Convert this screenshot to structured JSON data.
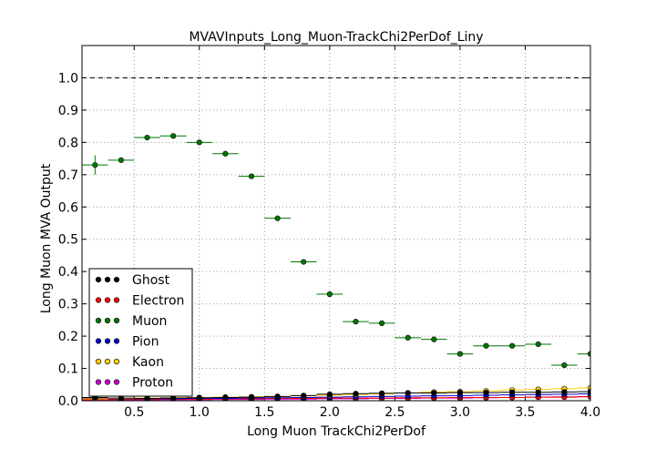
{
  "chart_data": {
    "type": "scatter",
    "title": "MVAVInputs_Long_Muon-TrackChi2PerDof_Liny",
    "xlabel": "Long Muon TrackChi2PerDof",
    "ylabel": "Long Muon MVA Output",
    "xlim": [
      0.1,
      4.0
    ],
    "ylim": [
      0.0,
      1.1
    ],
    "grid": true,
    "legend_position": "lower-left",
    "reference_line": 1.0,
    "xticks": [
      "0.5",
      "1.0",
      "1.5",
      "2.0",
      "2.5",
      "3.0",
      "3.5",
      "4.0"
    ],
    "yticks": [
      "0.0",
      "0.1",
      "0.2",
      "0.3",
      "0.4",
      "0.5",
      "0.6",
      "0.7",
      "0.8",
      "0.9",
      "1.0"
    ],
    "x": [
      0.2,
      0.4,
      0.6,
      0.8,
      1.0,
      1.2,
      1.4,
      1.6,
      1.8,
      2.0,
      2.2,
      2.4,
      2.6,
      2.8,
      3.0,
      3.2,
      3.4,
      3.6,
      3.8,
      4.0
    ],
    "xerr": 0.1,
    "series": [
      {
        "name": "Ghost",
        "color": "#000000",
        "values": [
          0.01,
          0.008,
          0.007,
          0.008,
          0.009,
          0.01,
          0.011,
          0.013,
          0.016,
          0.02,
          0.022,
          0.023,
          0.024,
          0.024,
          0.025,
          0.025,
          0.026,
          0.026,
          0.027,
          0.028
        ]
      },
      {
        "name": "Electron",
        "color": "#ff0000",
        "values": [
          0.003,
          0.004,
          0.004,
          0.005,
          0.005,
          0.006,
          0.006,
          0.007,
          0.007,
          0.008,
          0.008,
          0.008,
          0.009,
          0.009,
          0.01,
          0.01,
          0.01,
          0.011,
          0.011,
          0.012
        ]
      },
      {
        "name": "Muon",
        "color": "#007700",
        "values": [
          0.73,
          0.745,
          0.815,
          0.82,
          0.8,
          0.765,
          0.695,
          0.565,
          0.43,
          0.33,
          0.245,
          0.24,
          0.195,
          0.19,
          0.145,
          0.17,
          0.17,
          0.175,
          0.11,
          0.145
        ]
      },
      {
        "name": "Pion",
        "color": "#0000cc",
        "values": [
          0.008,
          0.006,
          0.006,
          0.006,
          0.007,
          0.007,
          0.008,
          0.009,
          0.01,
          0.011,
          0.012,
          0.013,
          0.014,
          0.015,
          0.016,
          0.017,
          0.018,
          0.019,
          0.02,
          0.021
        ]
      },
      {
        "name": "Kaon",
        "color": "#ffcc00",
        "values": [
          0.006,
          0.007,
          0.008,
          0.009,
          0.01,
          0.011,
          0.012,
          0.013,
          0.015,
          0.017,
          0.019,
          0.021,
          0.024,
          0.027,
          0.028,
          0.03,
          0.033,
          0.035,
          0.037,
          0.04
        ]
      },
      {
        "name": "Proton",
        "color": "#cc00cc",
        "values": [
          0.001,
          0.002,
          0.002,
          0.003,
          0.003,
          0.004,
          0.004,
          0.005,
          0.005,
          0.006,
          0.006,
          0.007,
          0.007,
          0.008,
          0.008,
          0.009,
          0.01,
          0.011,
          0.012,
          0.013
        ]
      }
    ]
  }
}
